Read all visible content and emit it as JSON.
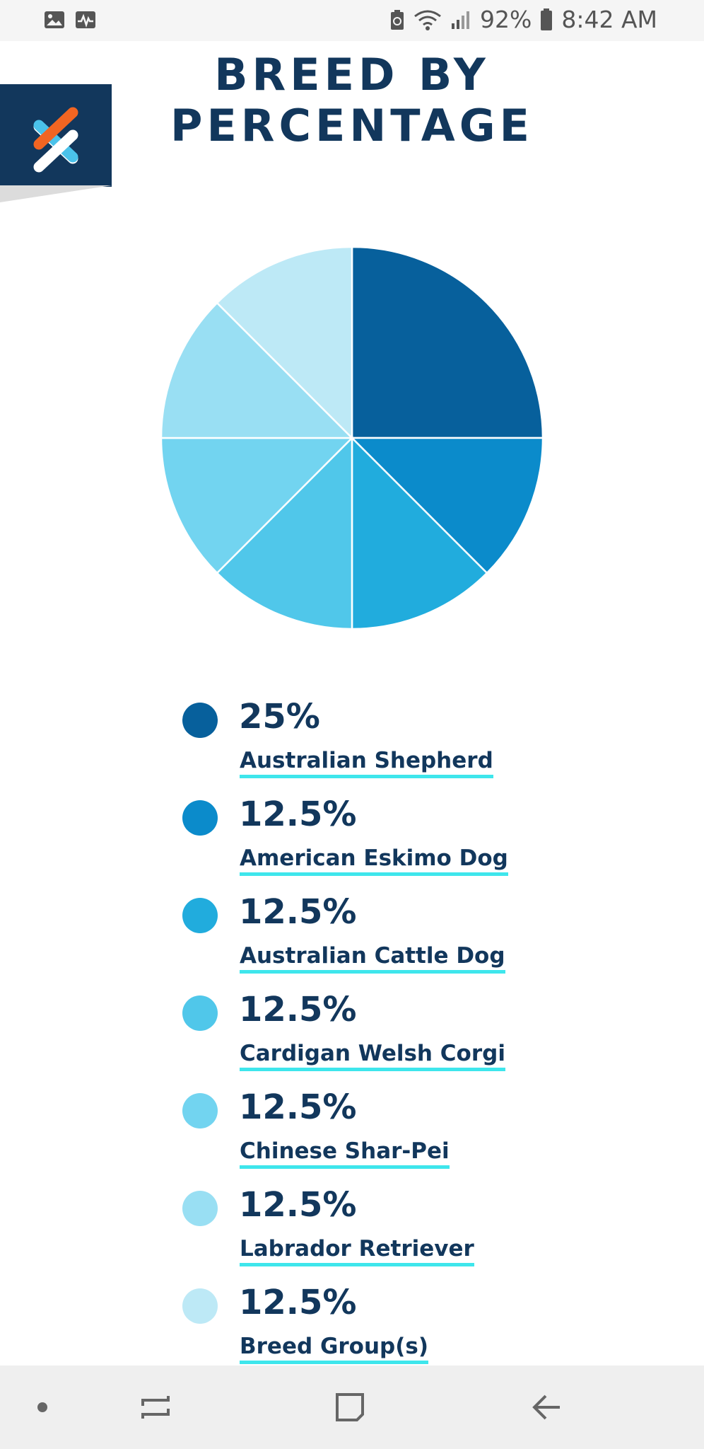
{
  "status_bar": {
    "left_icons": [
      "gallery-icon",
      "activity-icon"
    ],
    "right_icons": [
      "battery-saver-icon",
      "wifi-icon",
      "signal-icon"
    ],
    "battery_percent": "92%",
    "time": "8:42 AM"
  },
  "header": {
    "title_line1": "BREED BY",
    "title_line2": "PERCENTAGE",
    "logo_icon": "x-helix-logo-icon",
    "title_color": "#12375c"
  },
  "chart_data": {
    "type": "pie",
    "title": "BREED BY PERCENTAGE",
    "slices": [
      {
        "label": "Australian Shepherd",
        "value": 25,
        "color": "#07609c"
      },
      {
        "label": "American Eskimo Dog",
        "value": 12.5,
        "color": "#0b8bcb"
      },
      {
        "label": "Australian Cattle Dog",
        "value": 12.5,
        "color": "#21acdd"
      },
      {
        "label": "Cardigan Welsh Corgi",
        "value": 12.5,
        "color": "#50c7ea"
      },
      {
        "label": "Chinese Shar-Pei",
        "value": 12.5,
        "color": "#72d4f0"
      },
      {
        "label": "Labrador Retriever",
        "value": 12.5,
        "color": "#99dff3"
      },
      {
        "label": "Breed Group(s)",
        "value": 12.5,
        "color": "#bde9f6"
      }
    ]
  },
  "legend": [
    {
      "pct": "25%",
      "breed": "Australian Shepherd"
    },
    {
      "pct": "12.5%",
      "breed": "American Eskimo Dog"
    },
    {
      "pct": "12.5%",
      "breed": "Australian Cattle Dog"
    },
    {
      "pct": "12.5%",
      "breed": "Cardigan Welsh Corgi"
    },
    {
      "pct": "12.5%",
      "breed": "Chinese Shar-Pei"
    },
    {
      "pct": "12.5%",
      "breed": "Labrador Retriever"
    },
    {
      "pct": "12.5%",
      "breed": "Breed Group(s)"
    }
  ],
  "nav_bar": {
    "buttons": [
      "dot-icon",
      "recent-apps-icon",
      "home-icon",
      "back-icon"
    ]
  }
}
